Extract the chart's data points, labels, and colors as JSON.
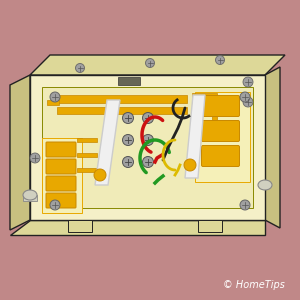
{
  "bg_color": "#c08888",
  "cream_face": "#f5f0c8",
  "cream_side": "#ddd898",
  "cream_dark": "#c8c080",
  "outline": "#222222",
  "gold": "#e8a800",
  "gold_dark": "#c88800",
  "gold_light": "#f0c030",
  "screw_gray": "#a0a0a0",
  "screw_dark": "#606060",
  "white_lever": "#f0f0f0",
  "lever_shadow": "#cccccc",
  "wire_red": "#cc1111",
  "wire_green": "#229922",
  "wire_black": "#222222",
  "wire_yellow": "#ddbb00",
  "copyright_text": "© HomeTips",
  "copyright_color": "#ffffff",
  "copyright_fontsize": 7
}
